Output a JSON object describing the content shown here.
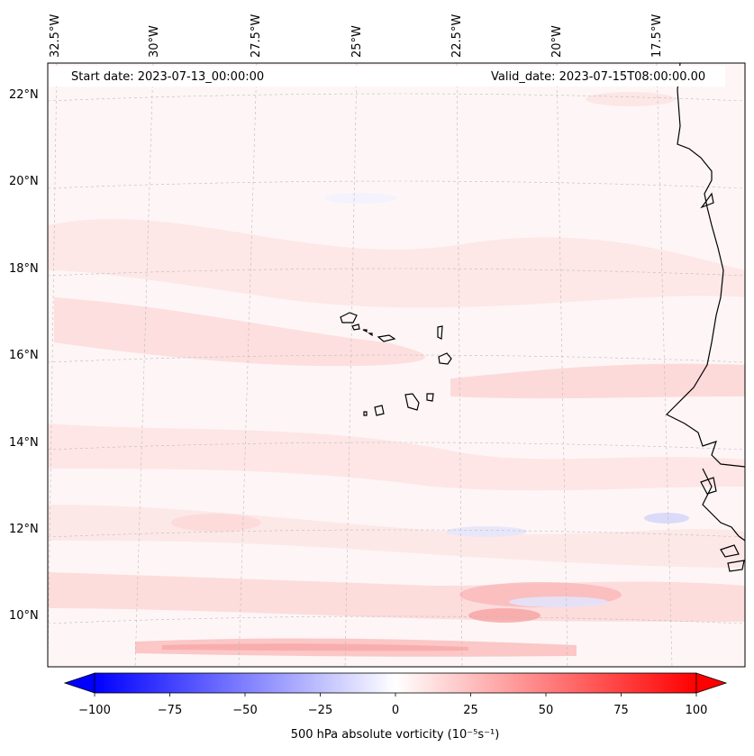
{
  "map": {
    "start_date_label": "Start date: 2023-07-13_00:00:00",
    "valid_date_label": "Valid_date: 2023-07-15T08:00:00.00",
    "lat_labels": [
      "22°N",
      "20°N",
      "18°N",
      "16°N",
      "14°N",
      "12°N",
      "10°N"
    ],
    "lon_labels": [
      "32.5°W",
      "30°W",
      "27.5°W",
      "25°W",
      "22.5°W",
      "20°W",
      "17.5°W"
    ],
    "colorbar": {
      "label": "500 hPa absolute vorticity (10⁻⁵s⁻¹)",
      "ticks": [
        "−100",
        "−75",
        "−50",
        "−25",
        "0",
        "25",
        "50",
        "75",
        "100"
      ],
      "vmin": -100,
      "vmax": 100,
      "colormap": "bwr",
      "extend": "both"
    },
    "colors": {
      "negative": "#0000ff",
      "neutral": "#ffffff",
      "positive": "#ff0000",
      "coastline": "#000000"
    }
  }
}
